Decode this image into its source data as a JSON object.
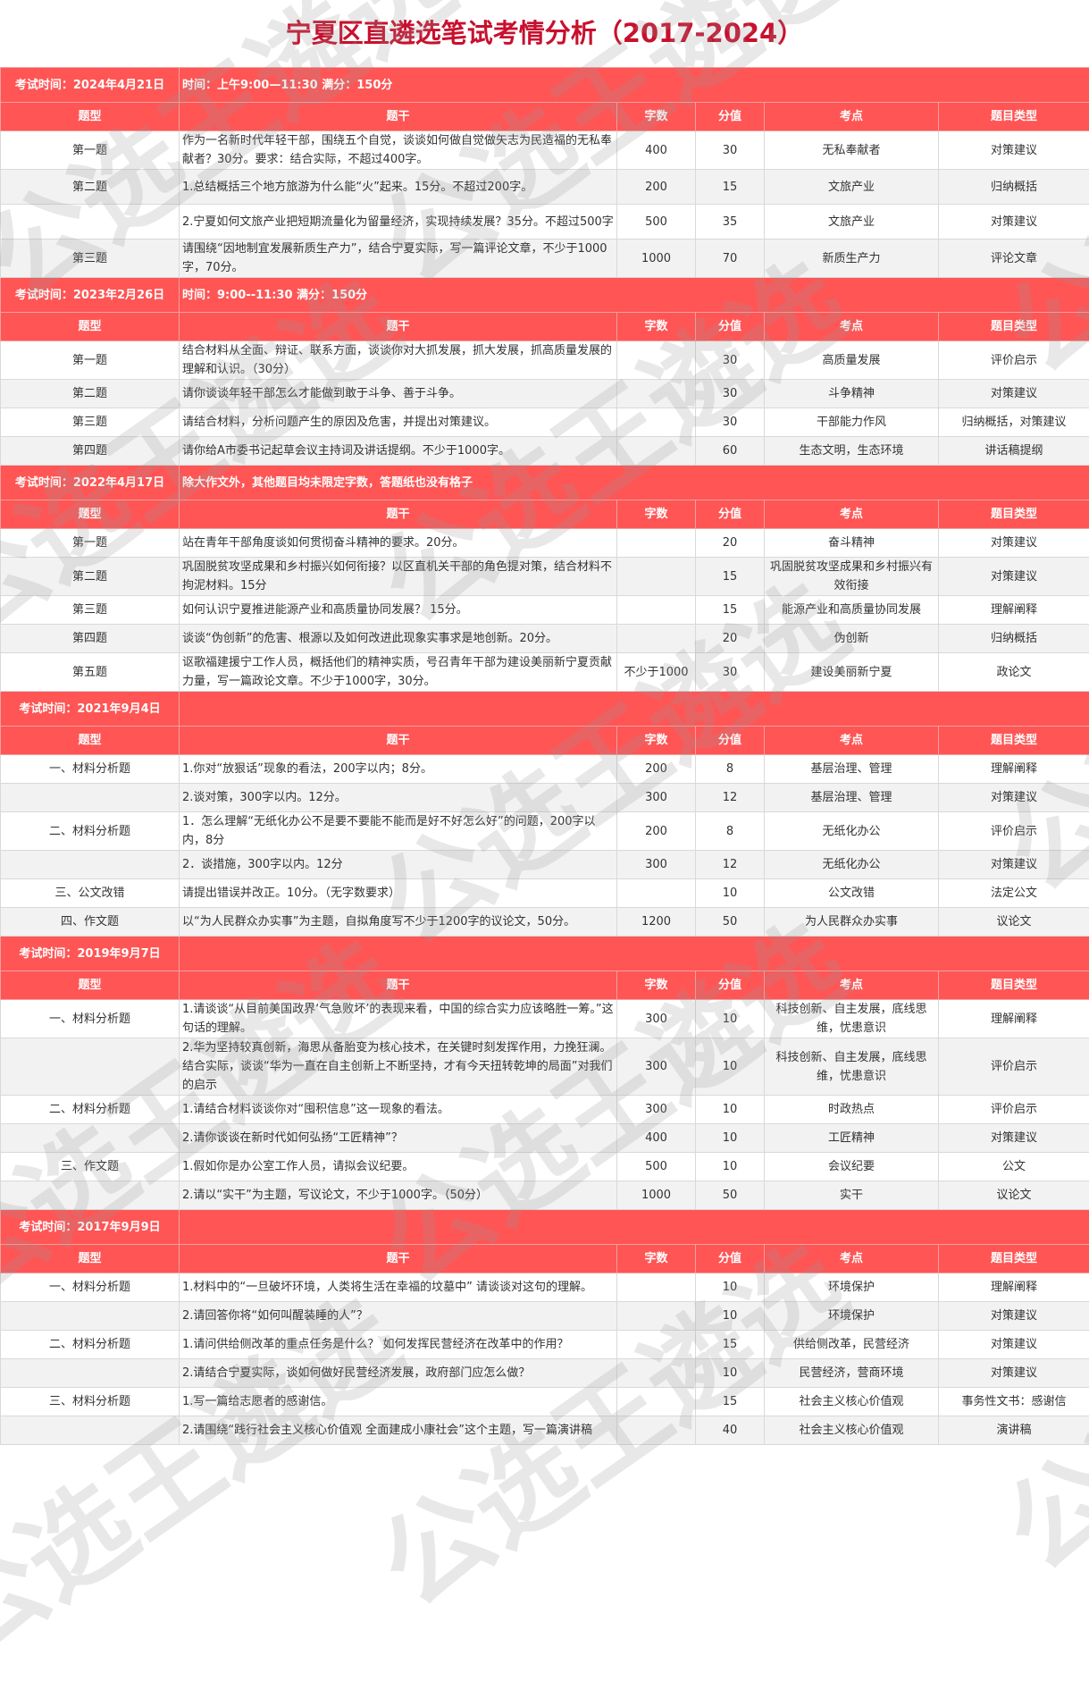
{
  "title": "宁夏区直遴选笔试考情分析（2017-2024）",
  "watermark": "公选王遴选",
  "colors": {
    "header_red": "#ff5555",
    "title_red": "#c8102e",
    "alt_row": "#f2f2f2"
  },
  "columns": [
    "题型",
    "题干",
    "字数",
    "分值",
    "考点",
    "题目类型"
  ],
  "sections": [
    {
      "exam_time": "考试时间：2024年4月21日",
      "note": "时间：上午9:00—11:30  满分：150分",
      "rows": [
        [
          "第一题",
          "作为一名新时代年轻干部，围绕五个自觉，谈谈如何做自觉做矢志为民造福的无私奉献者？30分。要求：结合实际，不超过400字。",
          "400",
          "30",
          "无私奉献者",
          "对策建议"
        ],
        [
          "第二题",
          "1.总结概括三个地方旅游为什么能“火”起来。15分。不超过200字。",
          "200",
          "15",
          "文旅产业",
          "归纳概括"
        ],
        [
          "",
          "2.宁夏如何文旅产业把短期流量化为留量经济，实现持续发展？35分。不超过500字",
          "500",
          "35",
          "文旅产业",
          "对策建议"
        ],
        [
          "第三题",
          "请围绕“因地制宜发展新质生产力”，结合宁夏实际，写一篇评论文章，不少于1000字，70分。",
          "1000",
          "70",
          "新质生产力",
          "评论文章"
        ]
      ]
    },
    {
      "exam_time": "考试时间：2023年2月26日",
      "note": "时间：9:00--11:30  满分：150分",
      "rows": [
        [
          "第一题",
          "结合材料从全面、辩证、联系方面，谈谈你对大抓发展，抓大发展，抓高质量发展的理解和认识。（30分）",
          "",
          "30",
          "高质量发展",
          "评价启示"
        ],
        [
          "第二题",
          "请你谈谈年轻干部怎么才能做到敢于斗争、善于斗争。",
          "",
          "30",
          "斗争精神",
          "对策建议"
        ],
        [
          "第三题",
          "请结合材料，分析问题产生的原因及危害，并提出对策建议。",
          "",
          "30",
          "干部能力作风",
          "归纳概括，对策建议"
        ],
        [
          "第四题",
          "请你给A市委书记起草会议主持词及讲话提纲。不少于1000字。",
          "",
          "60",
          "生态文明，生态环境",
          "讲话稿提纲"
        ]
      ]
    },
    {
      "exam_time": "考试时间：2022年4月17日",
      "note": "除大作文外，其他题目均未限定字数，答题纸也没有格子",
      "rows": [
        [
          "第一题",
          "站在青年干部角度谈如何贯彻奋斗精神的要求。20分。",
          "",
          "20",
          "奋斗精神",
          "对策建议"
        ],
        [
          "第二题",
          "巩固脱贫攻坚成果和乡村振兴如何衔接？以区直机关干部的角色提对策，结合材料不拘泥材料。15分",
          "",
          "15",
          "巩固脱贫攻坚成果和乡村振兴有效衔接",
          "对策建议"
        ],
        [
          "第三题",
          "如何认识宁夏推进能源产业和高质量协同发展？ 15分。",
          "",
          "15",
          "能源产业和高质量协同发展",
          "理解阐释"
        ],
        [
          "第四题",
          "谈谈“伪创新”的危害、根源以及如何改进此现象实事求是地创新。20分。",
          "",
          "20",
          "伪创新",
          "归纳概括"
        ],
        [
          "第五题",
          "讴歌福建援宁工作人员，概括他们的精神实质，号召青年干部为建设美丽新宁夏贡献力量，写一篇政论文章。不少于1000字，30分。",
          "不少于1000",
          "30",
          "建设美丽新宁夏",
          "政论文"
        ]
      ]
    },
    {
      "exam_time": "考试时间：2021年9月4日",
      "note": "",
      "rows": [
        [
          "一、材料分析题",
          "1.你对“放狠话”现象的看法，200字以内；8分。",
          "200",
          "8",
          "基层治理、管理",
          "理解阐释"
        ],
        [
          "",
          "2.谈对策，300字以内。12分。",
          "300",
          "12",
          "基层治理、管理",
          "对策建议"
        ],
        [
          "二、材料分析题",
          "1．怎么理解“无纸化办公不是要不要能不能而是好不好怎么好”的问题，200字以内，8分",
          "200",
          "8",
          "无纸化办公",
          "评价启示"
        ],
        [
          "",
          "2．谈措施，300字以内。12分",
          "300",
          "12",
          "无纸化办公",
          "对策建议"
        ],
        [
          "三、公文改错",
          "请提出错误并改正。10分。（无字数要求）",
          "",
          "10",
          "公文改错",
          "法定公文"
        ],
        [
          "四、作文题",
          "以“为人民群众办实事”为主题，自拟角度写不少于1200字的议论文，50分。",
          "1200",
          "50",
          "为人民群众办实事",
          "议论文"
        ]
      ]
    },
    {
      "exam_time": "考试时间：2019年9月7日",
      "note": "",
      "rows": [
        [
          "一、材料分析题",
          "1.请谈谈“从目前美国政界‘气急败坏’的表现来看，中国的综合实力应该略胜一筹。”这句话的理解。",
          "300",
          "10",
          "科技创新、自主发展，底线思维，忧患意识",
          "理解阐释"
        ],
        [
          "",
          "2.华为坚持较真创新，海思从备胎变为核心技术，在关键时刻发挥作用，力挽狂澜。结合实际，谈谈“华为一直在自主创新上不断坚持，才有今天扭转乾坤的局面”对我们的启示",
          "300",
          "10",
          "科技创新、自主发展，底线思维，忧患意识",
          "评价启示"
        ],
        [
          "二、材料分析题",
          "1.请结合材料谈谈你对“囤积信息”这一现象的看法。",
          "300",
          "10",
          "时政热点",
          "评价启示"
        ],
        [
          "",
          "2.请你谈谈在新时代如何弘扬“工匠精神”？",
          "400",
          "10",
          "工匠精神",
          "对策建议"
        ],
        [
          "三、作文题",
          "1.假如你是办公室工作人员，请拟会议纪要。",
          "500",
          "10",
          "会议纪要",
          "公文"
        ],
        [
          "",
          "2.请以“实干”为主题，写议论文，不少于1000字。（50分）",
          "1000",
          "50",
          "实干",
          "议论文"
        ]
      ]
    },
    {
      "exam_time": "考试时间：2017年9月9日",
      "note": "",
      "rows": [
        [
          "一、材料分析题",
          "1.材料中的“一旦破坏环境，人类将生活在幸福的坟墓中” 请谈谈对这句的理解。",
          "",
          "10",
          "环境保护",
          "理解阐释"
        ],
        [
          "",
          "2.请回答你将“如何叫醒装睡的人”？",
          "",
          "10",
          "环境保护",
          "对策建议"
        ],
        [
          "二、材料分析题",
          "1.请问供给侧改革的重点任务是什么？ 如何发挥民营经济在改革中的作用？",
          "",
          "15",
          "供给侧改革，民营经济",
          "对策建议"
        ],
        [
          "",
          "2.请结合宁夏实际，谈如何做好民营经济发展，政府部门应怎么做？",
          "",
          "10",
          "民营经济，营商环境",
          "对策建议"
        ],
        [
          "三、材料分析题",
          "1.写一篇给志愿者的感谢信。",
          "",
          "15",
          "社会主义核心价值观",
          "事务性文书：感谢信"
        ],
        [
          "",
          "2.请围绕“践行社会主义核心价值观  全面建成小康社会”这个主题，写一篇演讲稿",
          "",
          "40",
          "社会主义核心价值观",
          "演讲稿"
        ]
      ]
    }
  ]
}
